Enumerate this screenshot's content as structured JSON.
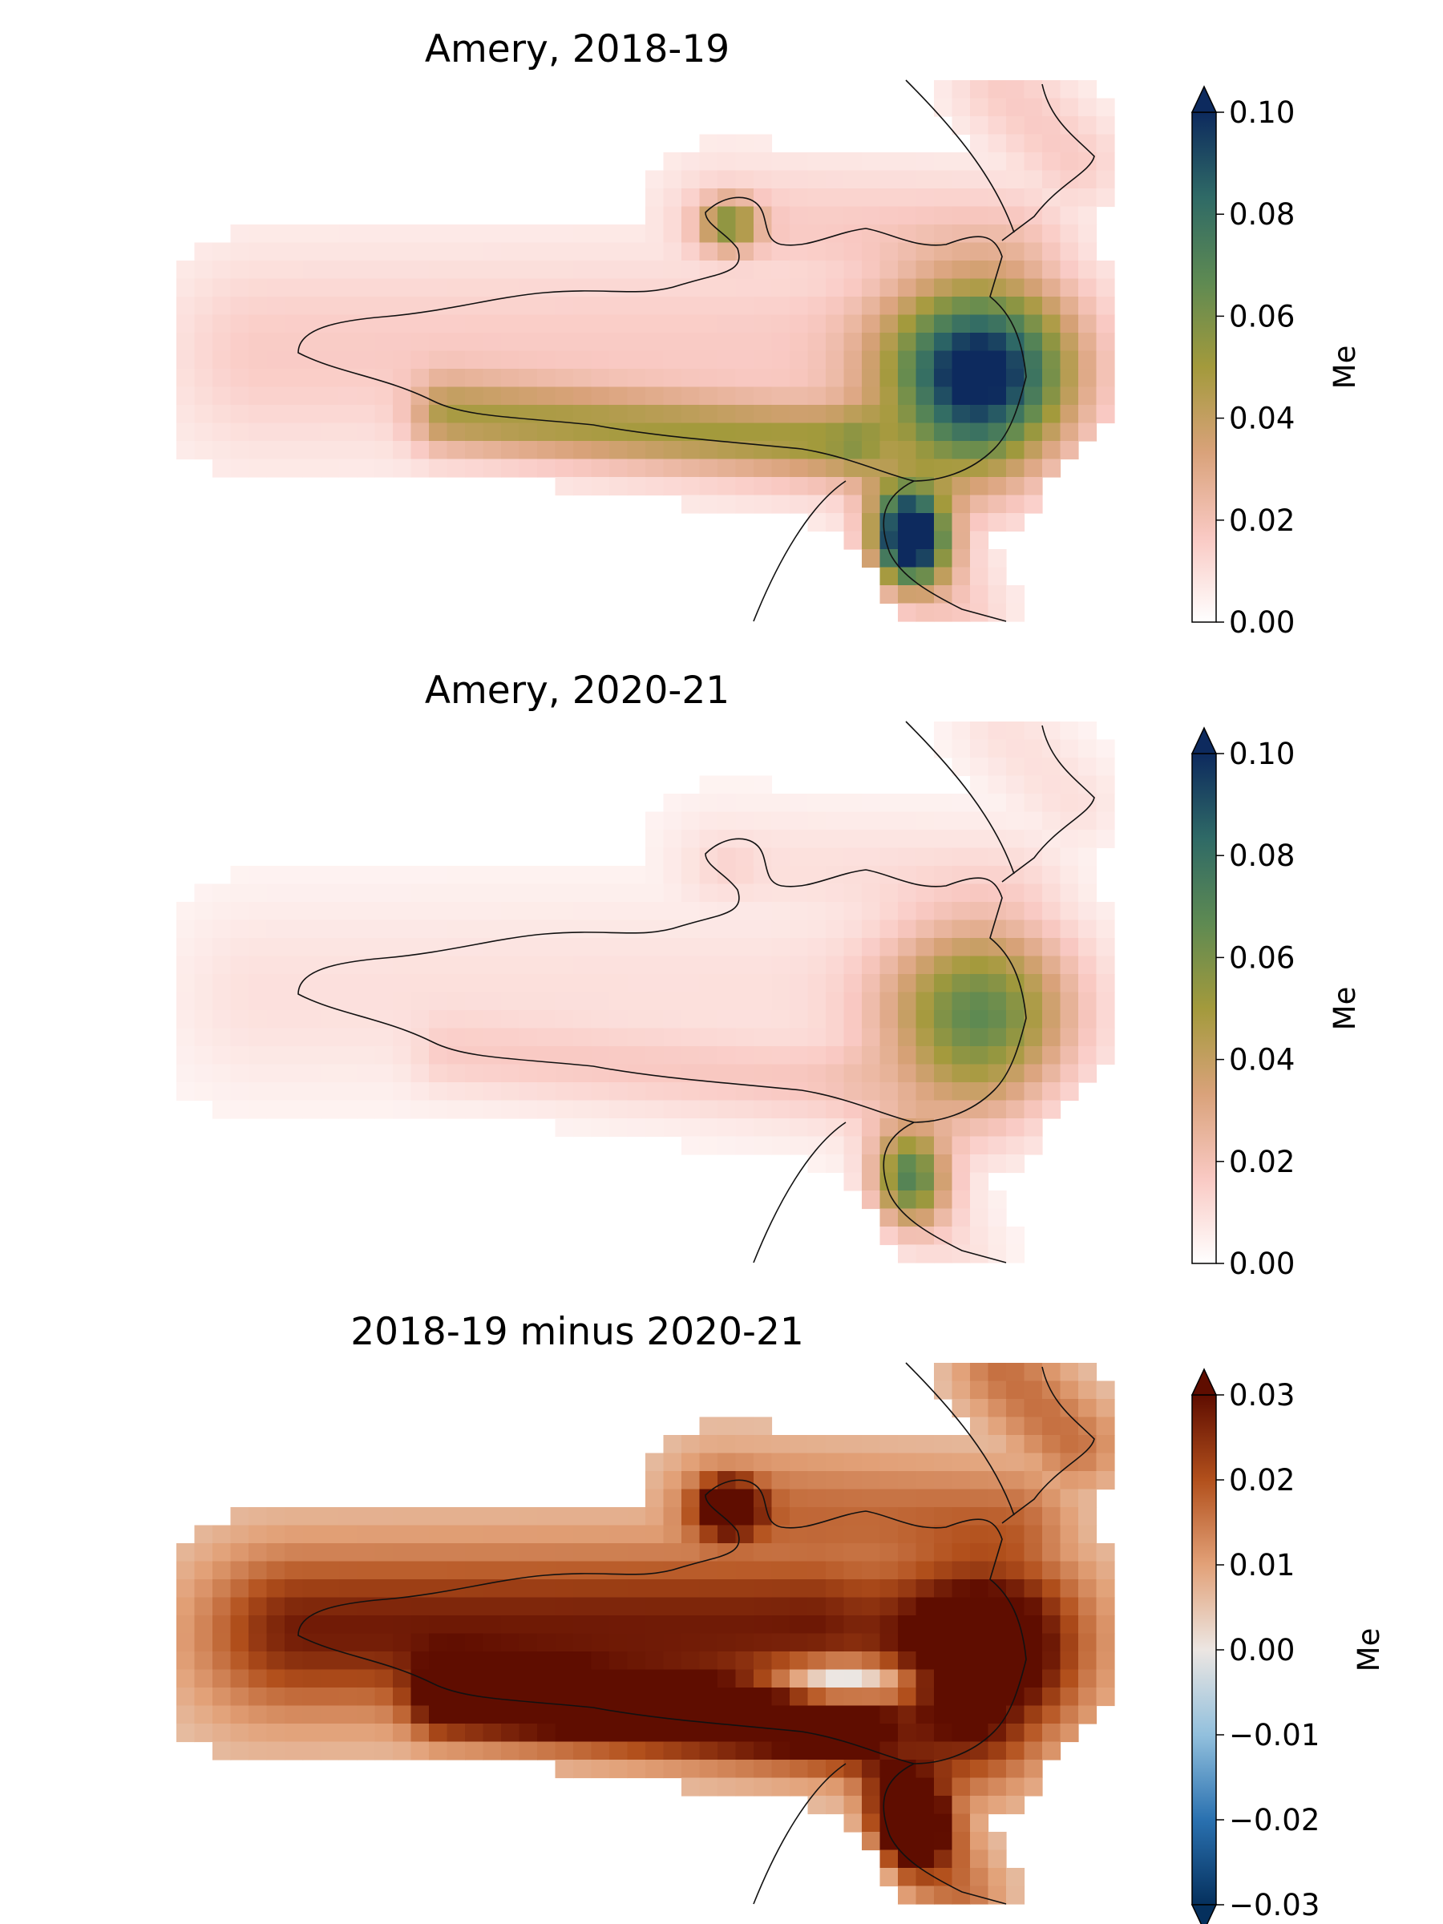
{
  "chart_data": [
    {
      "type": "heatmap",
      "title": "Amery, 2018-19",
      "colorbar": {
        "label": "Me",
        "range": [
          0.0,
          0.1
        ],
        "ticks": [
          0.0,
          0.02,
          0.04,
          0.06,
          0.08,
          0.1
        ],
        "tick_labels": [
          "0.00",
          "0.02",
          "0.04",
          "0.06",
          "0.08",
          "0.10"
        ],
        "extend": "max",
        "colormap": [
          "#ffffff",
          "#f9c9c3",
          "#d9a27a",
          "#a39a3c",
          "#5e8a52",
          "#2f6a66",
          "#0d2a5e"
        ]
      },
      "field_description_regions": [
        {
          "region": "central ice shelf",
          "value": 0.015
        },
        {
          "region": "western grounding-line band",
          "value": 0.045
        },
        {
          "region": "north-east inlet",
          "value": 0.055
        },
        {
          "region": "eastern front near ice-shelf edge",
          "value": 0.1
        },
        {
          "region": "southern tributary glacier",
          "value": 0.1
        },
        {
          "region": "surrounding ice sheet",
          "value": 0.005
        }
      ]
    },
    {
      "type": "heatmap",
      "title": "Amery, 2020-21",
      "colorbar": {
        "label": "Me",
        "range": [
          0.0,
          0.1
        ],
        "ticks": [
          0.0,
          0.02,
          0.04,
          0.06,
          0.08,
          0.1
        ],
        "tick_labels": [
          "0.00",
          "0.02",
          "0.04",
          "0.06",
          "0.08",
          "0.10"
        ],
        "extend": "max",
        "colormap": [
          "#ffffff",
          "#f9c9c3",
          "#d9a27a",
          "#a39a3c",
          "#5e8a52",
          "#2f6a66",
          "#0d2a5e"
        ]
      },
      "field_description_regions": [
        {
          "region": "central ice shelf",
          "value": 0.008
        },
        {
          "region": "western grounding-line band",
          "value": 0.015
        },
        {
          "region": "north-east inlet",
          "value": 0.01
        },
        {
          "region": "eastern front near ice-shelf edge",
          "value": 0.065
        },
        {
          "region": "southern tributary glacier",
          "value": 0.065
        },
        {
          "region": "surrounding ice sheet",
          "value": 0.002
        }
      ]
    },
    {
      "type": "heatmap",
      "title": "2018-19 minus 2020-21",
      "colorbar": {
        "label": "Me",
        "range": [
          -0.03,
          0.03
        ],
        "ticks": [
          -0.03,
          -0.02,
          -0.01,
          0.0,
          0.01,
          0.02,
          0.03
        ],
        "tick_labels": [
          "−0.03",
          "−0.02",
          "−0.01",
          "0.00",
          "0.01",
          "0.02",
          "0.03"
        ],
        "extend": "both",
        "colormap": [
          "#05305d",
          "#2a71b0",
          "#92c0dd",
          "#ece6e2",
          "#e2a178",
          "#b2501c",
          "#5f0d00"
        ]
      },
      "field_description_regions": [
        {
          "region": "central ice shelf",
          "value": 0.015
        },
        {
          "region": "western grounding-line band",
          "value": 0.03
        },
        {
          "region": "north-east inlet",
          "value": 0.03
        },
        {
          "region": "eastern front near ice-shelf edge",
          "value": 0.03
        },
        {
          "region": "southern tributary glacier",
          "value": 0.03
        },
        {
          "region": "east-central shelf patch",
          "value": -0.008
        },
        {
          "region": "southern margin",
          "value": -0.004
        },
        {
          "region": "surrounding ice sheet",
          "value": 0.002
        }
      ]
    }
  ]
}
